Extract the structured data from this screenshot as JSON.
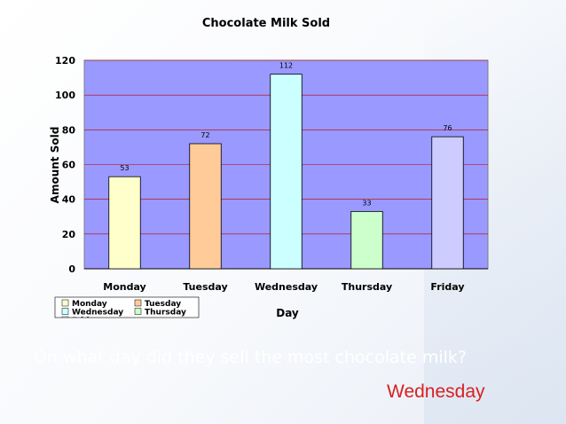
{
  "chart_data": {
    "type": "bar",
    "title": "Chocolate Milk Sold",
    "xlabel": "Day",
    "ylabel": "Amount Sold",
    "categories": [
      "Monday",
      "Tuesday",
      "Wednesday",
      "Thursday",
      "Friday"
    ],
    "values": [
      53,
      72,
      112,
      33,
      76
    ],
    "ylim": [
      0,
      120
    ],
    "yticks": [
      0,
      20,
      40,
      60,
      80,
      100,
      120
    ],
    "grid": true,
    "legend_position": "bottom-left",
    "legend_entries": [
      "Monday",
      "Tuesday",
      "Wednesday",
      "Thursday",
      "Friday"
    ],
    "colors": [
      "#ffffcc",
      "#ffcc99",
      "#ccffff",
      "#ccffcc",
      "#ccccff"
    ],
    "plot_background": "#9999ff",
    "gridline_color": "#c00000"
  },
  "question": "On what day did they sell the most chocolate milk?",
  "answer": "Wednesday"
}
